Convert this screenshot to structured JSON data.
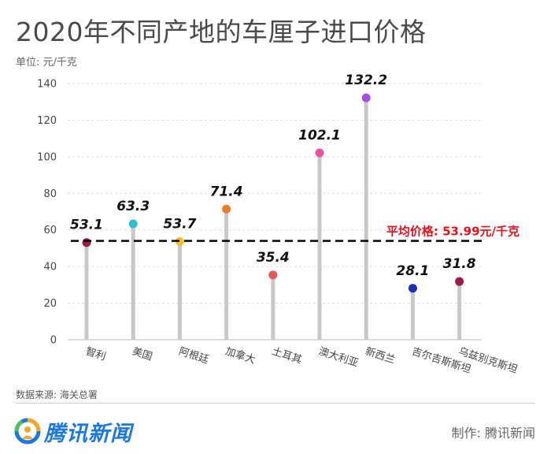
{
  "title": "2020年不同产地的车厘子进口价格",
  "unit_label": "单位: 元/千克",
  "source": "数据来源: 海关总署",
  "logo_text": "腾讯新闻",
  "credit": "制作: 腾讯新闻",
  "average_label": "平均价格: 53.99元/千克",
  "colors": {
    "stem": "#c8c8c8",
    "average_line": "#000000",
    "average_text": "#e8101a",
    "axis_text": "#444444",
    "brand": "#1a78e0"
  },
  "chart_data": {
    "type": "lollipop",
    "title": "2020年不同产地的车厘子进口价格",
    "ylabel": "单位: 元/千克",
    "ylim": [
      0,
      140
    ],
    "yticks": [
      0,
      20,
      40,
      60,
      80,
      100,
      120,
      140
    ],
    "grid": true,
    "categories": [
      "智利",
      "美国",
      "阿根廷",
      "加拿大",
      "土耳其",
      "澳大利亚",
      "新西兰",
      "吉尔吉斯斯坦",
      "乌兹别克斯坦"
    ],
    "values": [
      53.1,
      63.3,
      53.7,
      71.4,
      35.4,
      102.1,
      132.2,
      28.1,
      31.8
    ],
    "point_colors": [
      "#9b1b4b",
      "#2cc0cf",
      "#f5c02a",
      "#ee7d24",
      "#e55a5a",
      "#ee4fa0",
      "#a64de8",
      "#1c2fb4",
      "#9b1b4b"
    ],
    "average": 53.99
  }
}
